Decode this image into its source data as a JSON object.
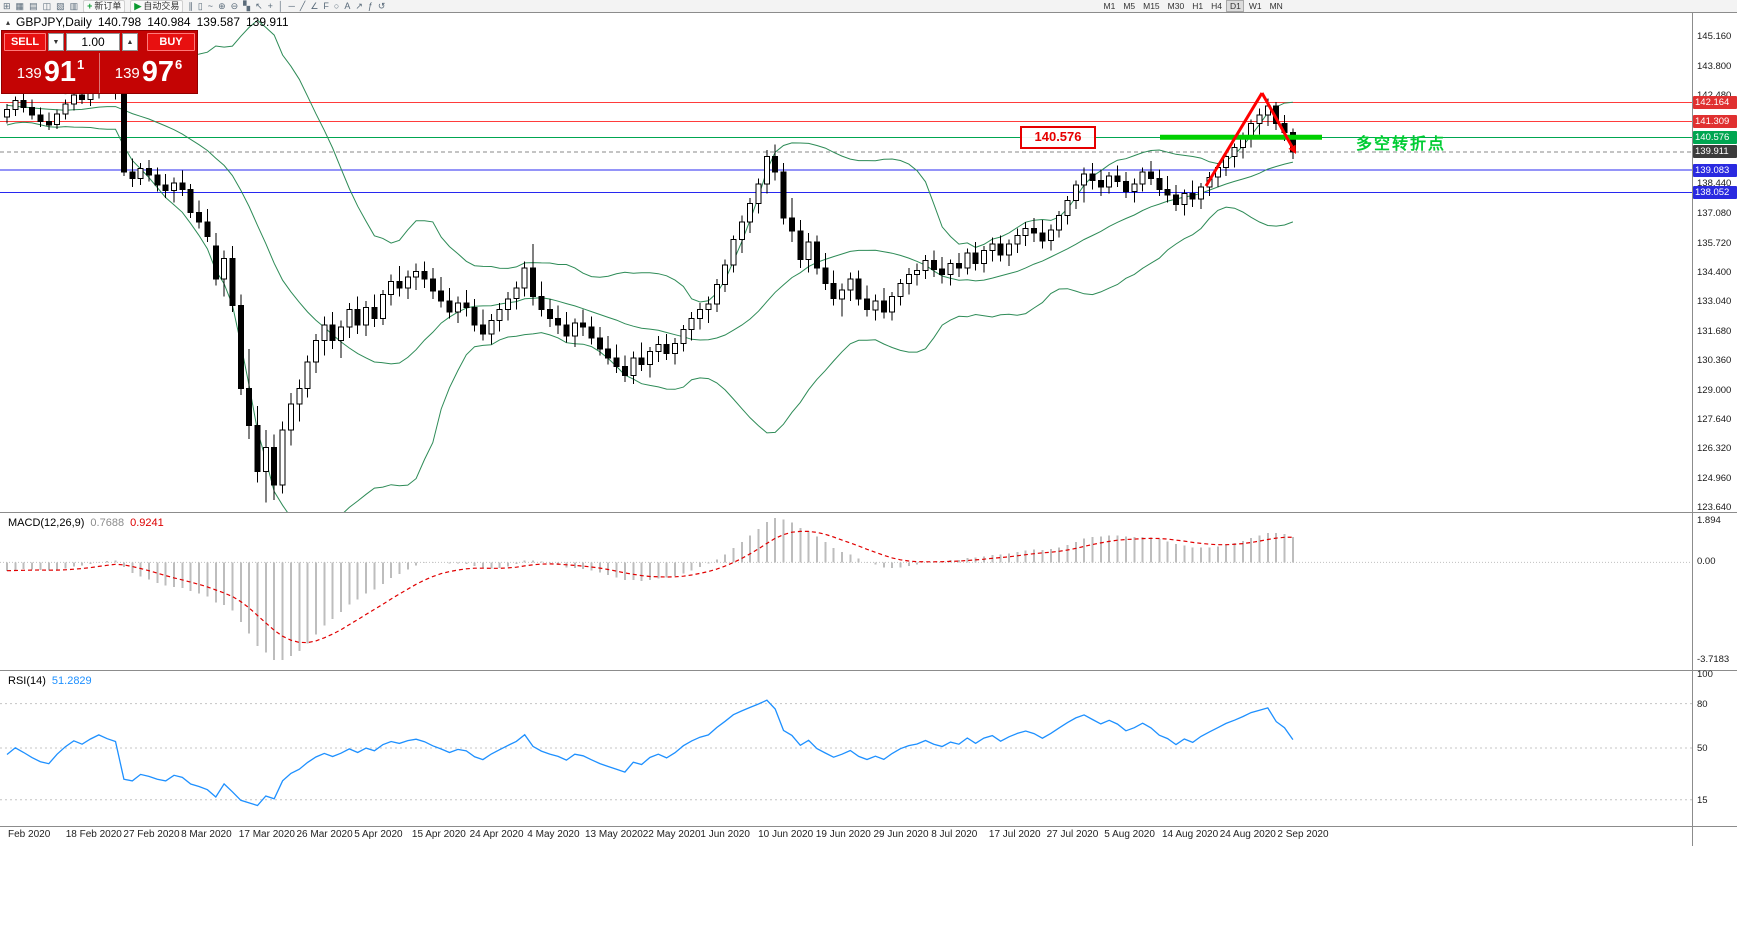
{
  "toolbar": {
    "new_order_label": "新订单",
    "autotrading_label": "自动交易",
    "timeframes": [
      "M1",
      "M5",
      "M15",
      "M30",
      "H1",
      "H4",
      "D1",
      "W1",
      "MN"
    ],
    "active_timeframe": "D1",
    "icons_a": [
      {
        "name": "new-chart-icon",
        "glyph": "⊞"
      },
      {
        "name": "profiles-icon",
        "glyph": "▦"
      },
      {
        "name": "market-watch-icon",
        "glyph": "▤"
      },
      {
        "name": "data-window-icon",
        "glyph": "◫"
      },
      {
        "name": "navigator-icon",
        "glyph": "▧"
      },
      {
        "name": "terminal-icon",
        "glyph": "▥"
      }
    ],
    "icons_b": [
      {
        "name": "bar-chart-icon",
        "glyph": "∥"
      },
      {
        "name": "candlestick-chart-icon",
        "glyph": "▯"
      },
      {
        "name": "line-chart-icon",
        "glyph": "~"
      },
      {
        "name": "zoom-in-icon",
        "glyph": "⊕"
      },
      {
        "name": "zoom-out-icon",
        "glyph": "⊖"
      },
      {
        "name": "tile-windows-icon",
        "glyph": "▚"
      },
      {
        "name": "cursor-icon",
        "glyph": "↖"
      },
      {
        "name": "crosshair-icon",
        "glyph": "+"
      },
      {
        "name": "vertical-line-icon",
        "glyph": "│"
      },
      {
        "name": "horizontal-line-icon",
        "glyph": "─"
      },
      {
        "name": "trendline-icon",
        "glyph": "╱"
      },
      {
        "name": "channel-icon",
        "glyph": "∠"
      },
      {
        "name": "fibonacci-icon",
        "glyph": "F"
      },
      {
        "name": "ellipse-icon",
        "glyph": "○"
      },
      {
        "name": "text-icon",
        "glyph": "A"
      },
      {
        "name": "arrow-icon",
        "glyph": "↗"
      },
      {
        "name": "indicators-icon",
        "glyph": "ƒ"
      },
      {
        "name": "refresh-icon",
        "glyph": "↺"
      }
    ]
  },
  "header": {
    "symbol_period": "GBPJPY,Daily",
    "open": "140.798",
    "high": "140.984",
    "low": "139.587",
    "close": "139.911"
  },
  "trade_panel": {
    "sell_label": "SELL",
    "buy_label": "BUY",
    "volume": "1.00",
    "sell_price_main": "139",
    "sell_price_big": "91",
    "sell_price_sup": "1",
    "buy_price_main": "139",
    "buy_price_big": "97",
    "buy_price_sup": "6"
  },
  "annotations": {
    "price_box_label": "140.576",
    "turning_point_label": "多空转折点"
  },
  "indicators": {
    "macd": {
      "name": "MACD(12,26,9)",
      "main_value": "0.7688",
      "signal_value": "0.9241",
      "scale_max": "1.894",
      "scale_zero": "0.00",
      "scale_min": "-3.7183"
    },
    "rsi": {
      "name": "RSI(14)",
      "value": "51.2829"
    }
  },
  "axis": {
    "price_labels": [
      "145.160",
      "143.800",
      "142.480",
      "138.440",
      "137.080",
      "135.720",
      "134.400",
      "133.040",
      "131.680",
      "130.360",
      "129.000",
      "127.640",
      "126.320",
      "124.960",
      "123.640"
    ],
    "tags": [
      {
        "text": "142.164",
        "price": 142.164,
        "color": "#e03030"
      },
      {
        "text": "141.309",
        "price": 141.309,
        "color": "#e03030"
      },
      {
        "text": "140.576",
        "price": 140.576,
        "color": "#00a651"
      },
      {
        "text": "139.911",
        "price": 139.911,
        "color": "#3c3c3c"
      },
      {
        "text": "139.083",
        "price": 139.083,
        "color": "#2a2ae0"
      },
      {
        "text": "138.052",
        "price": 138.052,
        "color": "#2a2ae0"
      }
    ],
    "rsi_labels": [
      "100",
      "80",
      "50",
      "15"
    ],
    "dates": [
      "Feb 2020",
      "18 Feb 2020",
      "27 Feb 2020",
      "8 Mar 2020",
      "17 Mar 2020",
      "26 Mar 2020",
      "5 Apr 2020",
      "15 Apr 2020",
      "24 Apr 2020",
      "4 May 2020",
      "13 May 2020",
      "22 May 2020",
      "1 Jun 2020",
      "10 Jun 2020",
      "19 Jun 2020",
      "29 Jun 2020",
      "8 Jul 2020",
      "17 Jul 2020",
      "27 Jul 2020",
      "5 Aug 2020",
      "14 Aug 2020",
      "24 Aug 2020",
      "2 Sep 2020"
    ]
  },
  "chart_data": {
    "type": "candlestick",
    "symbol": "GBPJPY",
    "period": "Daily",
    "ylim": [
      123.64,
      145.16
    ],
    "current_price": 139.911,
    "levels": [
      {
        "price": 142.164,
        "color": "#ff3b3b"
      },
      {
        "price": 141.309,
        "color": "#ff3b3b"
      },
      {
        "price": 140.576,
        "color": "#00a651"
      },
      {
        "price": 139.083,
        "color": "#2828f0"
      },
      {
        "price": 138.052,
        "color": "#2828f0"
      }
    ],
    "overlays": {
      "bollinger_period": 20,
      "bollinger_deviation": 2
    },
    "macd": {
      "fast": 12,
      "slow": 26,
      "signal": 9,
      "main": 0.7688,
      "signal_value": 0.9241
    },
    "rsi": {
      "period": 14,
      "value": 51.2829
    },
    "pre_closes": [
      143.2,
      143.6,
      143.9,
      144.2,
      143.8,
      143.4,
      143.0,
      142.6,
      142.9,
      143.3,
      143.6,
      143.1,
      142.7,
      142.4,
      142.0,
      141.7,
      142.1,
      142.5,
      142.2,
      141.9,
      141.6,
      141.9,
      142.3,
      142.6,
      142.2,
      141.9,
      141.6,
      141.3,
      141.6,
      141.4
    ],
    "candles": [
      [
        141.5,
        142.1,
        141.2,
        141.85
      ],
      [
        141.85,
        142.45,
        141.55,
        142.25
      ],
      [
        142.25,
        142.6,
        141.7,
        141.95
      ],
      [
        141.95,
        142.3,
        141.4,
        141.6
      ],
      [
        141.6,
        141.95,
        141.05,
        141.3
      ],
      [
        141.3,
        141.7,
        140.9,
        141.15
      ],
      [
        141.15,
        141.85,
        140.95,
        141.65
      ],
      [
        141.65,
        142.3,
        141.4,
        142.1
      ],
      [
        142.1,
        142.7,
        141.8,
        142.5
      ],
      [
        142.5,
        142.95,
        142.1,
        142.3
      ],
      [
        142.3,
        142.85,
        142.0,
        142.65
      ],
      [
        142.65,
        143.2,
        142.35,
        142.95
      ],
      [
        142.95,
        143.4,
        142.55,
        142.75
      ],
      [
        142.75,
        143.1,
        142.3,
        142.6
      ],
      [
        142.6,
        142.8,
        138.8,
        139.0
      ],
      [
        139.0,
        139.6,
        138.3,
        138.7
      ],
      [
        138.7,
        139.4,
        138.4,
        139.15
      ],
      [
        139.15,
        139.55,
        138.55,
        138.85
      ],
      [
        138.85,
        139.2,
        138.1,
        138.4
      ],
      [
        138.4,
        138.9,
        137.8,
        138.15
      ],
      [
        138.15,
        138.75,
        137.6,
        138.5
      ],
      [
        138.5,
        139.05,
        137.9,
        138.2
      ],
      [
        138.2,
        138.45,
        136.9,
        137.15
      ],
      [
        137.15,
        137.7,
        136.4,
        136.7
      ],
      [
        136.7,
        137.3,
        135.8,
        136.05
      ],
      [
        135.6,
        136.2,
        133.8,
        134.1
      ],
      [
        134.1,
        135.4,
        133.3,
        135.05
      ],
      [
        135.05,
        135.6,
        132.6,
        132.9
      ],
      [
        132.9,
        133.4,
        128.8,
        129.1
      ],
      [
        129.1,
        130.9,
        126.8,
        127.4
      ],
      [
        127.4,
        128.3,
        124.8,
        125.3
      ],
      [
        125.3,
        127.2,
        123.9,
        126.4
      ],
      [
        126.4,
        127.0,
        124.0,
        124.7
      ],
      [
        124.7,
        127.6,
        124.3,
        127.2
      ],
      [
        127.2,
        128.9,
        126.5,
        128.4
      ],
      [
        128.4,
        129.5,
        127.6,
        129.1
      ],
      [
        129.1,
        130.6,
        128.7,
        130.3
      ],
      [
        130.3,
        131.6,
        129.8,
        131.3
      ],
      [
        131.3,
        132.4,
        130.6,
        132.0
      ],
      [
        132.0,
        132.6,
        130.9,
        131.3
      ],
      [
        131.3,
        132.2,
        130.5,
        131.9
      ],
      [
        131.9,
        133.0,
        131.4,
        132.7
      ],
      [
        132.7,
        133.3,
        131.6,
        132.0
      ],
      [
        132.0,
        133.1,
        131.5,
        132.8
      ],
      [
        132.8,
        133.4,
        131.9,
        132.3
      ],
      [
        132.3,
        133.6,
        132.0,
        133.4
      ],
      [
        133.4,
        134.3,
        132.9,
        134.0
      ],
      [
        134.0,
        134.7,
        133.3,
        133.7
      ],
      [
        133.7,
        134.5,
        133.2,
        134.2
      ],
      [
        134.2,
        134.8,
        133.6,
        134.45
      ],
      [
        134.45,
        134.9,
        133.7,
        134.1
      ],
      [
        134.1,
        134.6,
        133.2,
        133.55
      ],
      [
        133.55,
        134.2,
        132.8,
        133.1
      ],
      [
        133.1,
        133.7,
        132.3,
        132.6
      ],
      [
        132.6,
        133.3,
        132.1,
        133.0
      ],
      [
        133.0,
        133.6,
        132.4,
        132.8
      ],
      [
        132.8,
        133.2,
        131.7,
        132.0
      ],
      [
        132.0,
        132.7,
        131.3,
        131.6
      ],
      [
        131.6,
        132.5,
        131.1,
        132.2
      ],
      [
        132.2,
        133.0,
        131.7,
        132.7
      ],
      [
        132.7,
        133.5,
        132.2,
        133.2
      ],
      [
        133.2,
        134.0,
        132.7,
        133.7
      ],
      [
        133.7,
        134.9,
        133.3,
        134.6
      ],
      [
        134.6,
        135.7,
        132.9,
        133.3
      ],
      [
        133.3,
        134.0,
        132.4,
        132.7
      ],
      [
        132.7,
        133.2,
        131.9,
        132.3
      ],
      [
        132.3,
        132.9,
        131.6,
        132.0
      ],
      [
        132.0,
        132.6,
        131.2,
        131.5
      ],
      [
        131.5,
        132.3,
        131.0,
        132.1
      ],
      [
        132.1,
        132.7,
        131.5,
        131.9
      ],
      [
        131.9,
        132.4,
        131.1,
        131.4
      ],
      [
        131.4,
        131.9,
        130.6,
        130.9
      ],
      [
        130.9,
        131.5,
        130.2,
        130.5
      ],
      [
        130.5,
        131.1,
        129.8,
        130.1
      ],
      [
        130.1,
        130.6,
        129.4,
        129.7
      ],
      [
        129.7,
        130.8,
        129.3,
        130.5
      ],
      [
        130.5,
        131.2,
        129.9,
        130.2
      ],
      [
        130.2,
        131.0,
        129.6,
        130.8
      ],
      [
        130.8,
        131.5,
        130.3,
        131.1
      ],
      [
        131.1,
        131.6,
        130.4,
        130.7
      ],
      [
        130.7,
        131.4,
        130.2,
        131.15
      ],
      [
        131.15,
        132.0,
        130.8,
        131.8
      ],
      [
        131.8,
        132.6,
        131.3,
        132.3
      ],
      [
        132.3,
        133.0,
        131.8,
        132.7
      ],
      [
        132.7,
        133.3,
        132.1,
        132.95
      ],
      [
        132.95,
        134.1,
        132.6,
        133.85
      ],
      [
        133.85,
        135.0,
        133.5,
        134.75
      ],
      [
        134.75,
        136.1,
        134.4,
        135.9
      ],
      [
        135.9,
        137.0,
        135.3,
        136.7
      ],
      [
        136.7,
        137.8,
        136.2,
        137.55
      ],
      [
        137.55,
        138.7,
        137.1,
        138.45
      ],
      [
        138.45,
        140.0,
        138.0,
        139.7
      ],
      [
        139.7,
        140.25,
        138.6,
        139.0
      ],
      [
        139.0,
        139.4,
        136.6,
        136.9
      ],
      [
        136.9,
        137.8,
        135.8,
        136.3
      ],
      [
        136.3,
        136.8,
        134.6,
        135.0
      ],
      [
        135.0,
        136.2,
        134.4,
        135.8
      ],
      [
        135.8,
        136.1,
        134.3,
        134.6
      ],
      [
        134.6,
        135.3,
        133.6,
        133.9
      ],
      [
        133.9,
        134.5,
        132.9,
        133.2
      ],
      [
        133.2,
        133.9,
        132.4,
        133.6
      ],
      [
        133.6,
        134.4,
        133.1,
        134.1
      ],
      [
        134.1,
        134.5,
        132.9,
        133.2
      ],
      [
        133.2,
        133.8,
        132.4,
        132.7
      ],
      [
        132.7,
        133.4,
        132.2,
        133.1
      ],
      [
        133.1,
        133.7,
        132.3,
        132.6
      ],
      [
        132.6,
        133.5,
        132.2,
        133.3
      ],
      [
        133.3,
        134.1,
        132.9,
        133.9
      ],
      [
        133.9,
        134.6,
        133.4,
        134.3
      ],
      [
        134.3,
        134.8,
        133.8,
        134.5
      ],
      [
        134.5,
        135.2,
        134.1,
        134.95
      ],
      [
        134.95,
        135.4,
        134.2,
        134.55
      ],
      [
        134.55,
        135.1,
        133.9,
        134.3
      ],
      [
        134.3,
        135.0,
        133.8,
        134.8
      ],
      [
        134.8,
        135.3,
        134.2,
        134.6
      ],
      [
        134.6,
        135.5,
        134.3,
        135.3
      ],
      [
        135.3,
        135.8,
        134.5,
        134.8
      ],
      [
        134.8,
        135.6,
        134.4,
        135.4
      ],
      [
        135.4,
        136.0,
        134.9,
        135.7
      ],
      [
        135.7,
        136.1,
        134.9,
        135.2
      ],
      [
        135.2,
        135.9,
        134.7,
        135.7
      ],
      [
        135.7,
        136.4,
        135.3,
        136.1
      ],
      [
        136.1,
        136.7,
        135.6,
        136.4
      ],
      [
        136.4,
        136.9,
        135.8,
        136.2
      ],
      [
        136.2,
        136.8,
        135.5,
        135.85
      ],
      [
        135.85,
        136.6,
        135.4,
        136.35
      ],
      [
        136.35,
        137.2,
        136.0,
        137.0
      ],
      [
        137.0,
        137.9,
        136.6,
        137.7
      ],
      [
        137.7,
        138.6,
        137.3,
        138.4
      ],
      [
        138.4,
        139.2,
        137.6,
        138.9
      ],
      [
        138.9,
        139.4,
        138.2,
        138.6
      ],
      [
        138.6,
        139.1,
        137.9,
        138.3
      ],
      [
        138.3,
        139.0,
        138.0,
        138.8
      ],
      [
        138.8,
        139.3,
        138.3,
        138.55
      ],
      [
        138.55,
        139.0,
        137.8,
        138.1
      ],
      [
        138.1,
        138.7,
        137.6,
        138.45
      ],
      [
        138.45,
        139.2,
        138.1,
        139.0
      ],
      [
        139.0,
        139.5,
        138.4,
        138.7
      ],
      [
        138.7,
        139.1,
        137.9,
        138.2
      ],
      [
        138.2,
        138.8,
        137.6,
        137.95
      ],
      [
        137.95,
        138.4,
        137.2,
        137.5
      ],
      [
        137.5,
        138.2,
        137.0,
        138.0
      ],
      [
        138.0,
        138.6,
        137.4,
        137.75
      ],
      [
        137.75,
        138.5,
        137.3,
        138.3
      ],
      [
        138.3,
        139.0,
        137.9,
        138.75
      ],
      [
        138.75,
        139.4,
        138.3,
        139.2
      ],
      [
        139.2,
        139.9,
        138.8,
        139.7
      ],
      [
        139.7,
        140.3,
        139.2,
        140.1
      ],
      [
        140.1,
        140.8,
        139.6,
        140.6
      ],
      [
        140.6,
        141.4,
        140.1,
        141.2
      ],
      [
        141.2,
        141.9,
        140.7,
        141.6
      ],
      [
        141.6,
        142.35,
        141.1,
        142.0
      ],
      [
        142.0,
        142.2,
        140.9,
        141.2
      ],
      [
        141.2,
        141.6,
        140.4,
        140.8
      ],
      [
        140.798,
        140.984,
        139.587,
        139.911
      ]
    ]
  }
}
